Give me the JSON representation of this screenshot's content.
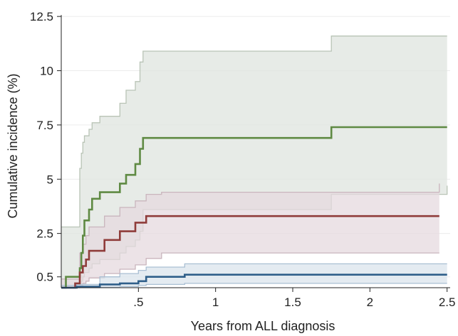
{
  "chart_data": {
    "type": "line",
    "xlabel": "Years from ALL diagnosis",
    "ylabel": "Cumulative incidence (%)",
    "xlim": [
      0,
      2.52
    ],
    "ylim": [
      0,
      12.8
    ],
    "x_ticks": [
      {
        "value": 0.5,
        "label": ".5"
      },
      {
        "value": 1,
        "label": "1"
      },
      {
        "value": 1.5,
        "label": "1.5"
      },
      {
        "value": 2,
        "label": "2"
      },
      {
        "value": 2.5,
        "label": "2.5"
      }
    ],
    "y_ticks": [
      {
        "value": 0.5,
        "label": "0.5"
      },
      {
        "value": 2.5,
        "label": "2.5"
      },
      {
        "value": 5,
        "label": "5"
      },
      {
        "value": 7.5,
        "label": "7.5"
      },
      {
        "value": 10,
        "label": "10"
      },
      {
        "value": 12.5,
        "label": "12.5"
      }
    ],
    "grid": true,
    "step": true,
    "series": [
      {
        "color": "#5f8a43",
        "band_fill": "#dfe4df",
        "band_stroke": "#b9c4b6",
        "x": [
          0,
          0.03,
          0.12,
          0.13,
          0.14,
          0.15,
          0.18,
          0.2,
          0.25,
          0.38,
          0.42,
          0.48,
          0.51,
          0.53,
          1.75,
          2.5
        ],
        "y": [
          0,
          0.5,
          0.9,
          1.6,
          2.4,
          3.1,
          3.6,
          4.1,
          4.4,
          4.8,
          5.2,
          5.7,
          6.4,
          6.9,
          7.4,
          7.4
        ],
        "lower": [
          0,
          0,
          0.1,
          0.3,
          0.5,
          0.7,
          0.9,
          1.1,
          1.3,
          1.6,
          1.9,
          2.2,
          2.6,
          3.6,
          4.3,
          4.7
        ],
        "upper": [
          2.8,
          2.8,
          5.5,
          6.2,
          6.7,
          7.0,
          7.3,
          7.6,
          7.9,
          8.5,
          9.1,
          9.5,
          10.4,
          10.9,
          11.6,
          11.6
        ]
      },
      {
        "color": "#8f3c3a",
        "band_fill": "#e6dadf",
        "band_stroke": "#c9b5bd",
        "x": [
          0,
          0.09,
          0.12,
          0.14,
          0.16,
          0.18,
          0.28,
          0.38,
          0.48,
          0.55,
          0.65,
          2.45
        ],
        "y": [
          0,
          0.2,
          0.7,
          1.0,
          1.3,
          1.7,
          2.2,
          2.6,
          3.0,
          3.3,
          3.3,
          3.3
        ],
        "lower": [
          0,
          0,
          0.1,
          0.2,
          0.3,
          0.45,
          0.65,
          0.85,
          1.05,
          1.35,
          1.6,
          1.6
        ],
        "upper": [
          0.4,
          0.4,
          1.6,
          2.0,
          2.4,
          2.8,
          3.3,
          3.7,
          4.0,
          4.3,
          4.4,
          4.8
        ]
      },
      {
        "color": "#2f5f8a",
        "band_fill": "#dbe4ec",
        "band_stroke": "#a9bfd3",
        "x": [
          0,
          0.1,
          0.25,
          0.38,
          0.5,
          0.55,
          0.8,
          2.5
        ],
        "y": [
          0,
          0.05,
          0.15,
          0.2,
          0.3,
          0.5,
          0.6,
          0.6
        ],
        "lower": [
          0,
          0,
          0.02,
          0.05,
          0.1,
          0.15,
          0.2,
          0.2
        ],
        "upper": [
          0.1,
          0.15,
          0.5,
          0.65,
          0.8,
          0.95,
          1.1,
          1.1
        ]
      }
    ]
  }
}
